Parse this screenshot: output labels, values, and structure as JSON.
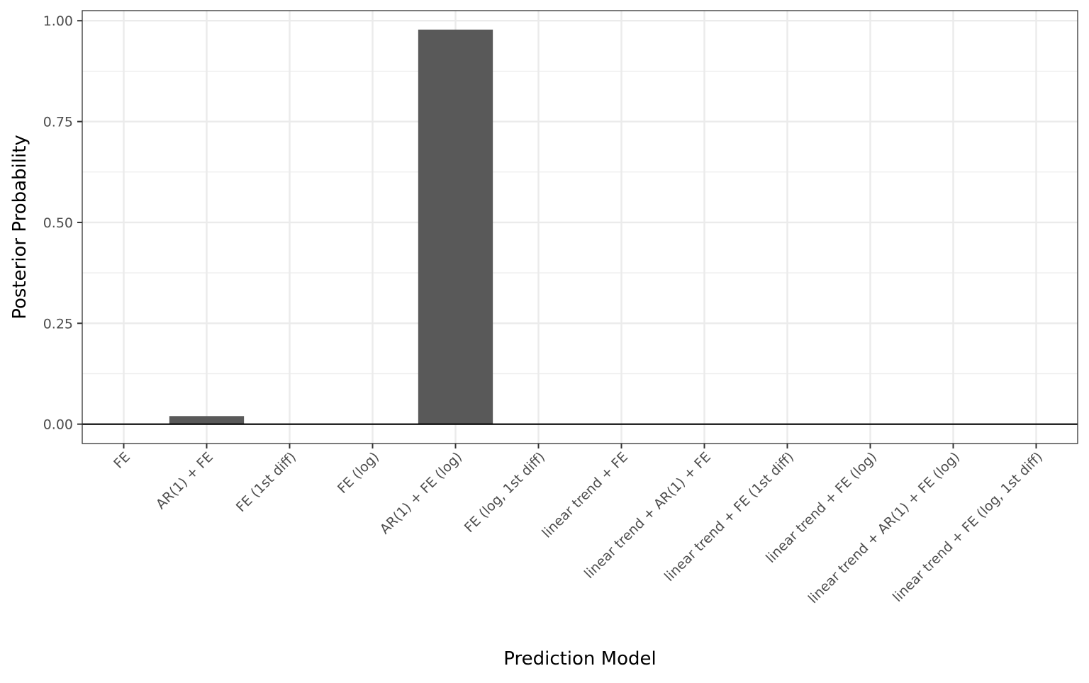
{
  "chart_data": {
    "type": "bar",
    "title": "",
    "xlabel": "Prediction Model",
    "ylabel": "Posterior Probability",
    "categories": [
      "FE",
      "AR(1) + FE",
      "FE (1st diff)",
      "FE (log)",
      "AR(1) + FE (log)",
      "FE (log, 1st diff)",
      "linear trend + FE",
      "linear trend + AR(1) + FE",
      "linear trend + FE (1st diff)",
      "linear trend + FE (log)",
      "linear trend + AR(1) + FE (log)",
      "linear trend + FE (log, 1st diff)"
    ],
    "values": [
      0,
      0.02,
      0,
      0,
      0.978,
      0,
      0,
      0,
      0,
      0,
      0,
      0
    ],
    "ylim": [
      -0.048,
      1.025
    ],
    "yticks": [
      0,
      0.25,
      0.5,
      0.75,
      1.0
    ],
    "ytick_labels": [
      "0.00",
      "0.25",
      "0.50",
      "0.75",
      "1.00"
    ],
    "grid": true,
    "legend": "none",
    "bar_color": "#595959",
    "grid_color": "#ebebeb",
    "zero_line_color": "#000000"
  }
}
